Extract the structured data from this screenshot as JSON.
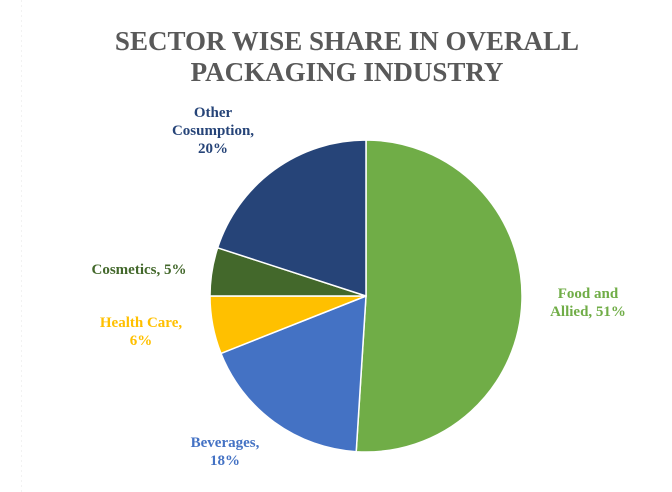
{
  "chart_data": {
    "type": "pie",
    "title": "SECTOR WISE SHARE IN OVERALL PACKAGING INDUSTRY",
    "title_lines": [
      "SECTOR WISE SHARE IN OVERALL",
      "PACKAGING INDUSTRY"
    ],
    "slices": [
      {
        "category": "Food and Allied",
        "value": 51,
        "label_lines": [
          "Food and",
          "Allied, 51%"
        ],
        "color": "#70AD47"
      },
      {
        "category": "Beverages",
        "value": 18,
        "label_lines": [
          "Beverages,",
          "18%"
        ],
        "color": "#4472C4"
      },
      {
        "category": "Health Care",
        "value": 6,
        "label_lines": [
          "Health Care,",
          "6%"
        ],
        "color": "#FFC000"
      },
      {
        "category": "Cosmetics",
        "value": 5,
        "label_lines": [
          "Cosmetics, 5%"
        ],
        "color": "#43682B"
      },
      {
        "category": "Other Cosumption",
        "value": 20,
        "label_lines": [
          "Other",
          "Cosumption,",
          "20%"
        ],
        "color": "#264478"
      }
    ],
    "legend": "none",
    "start_angle_deg": 0,
    "direction": "clockwise"
  }
}
